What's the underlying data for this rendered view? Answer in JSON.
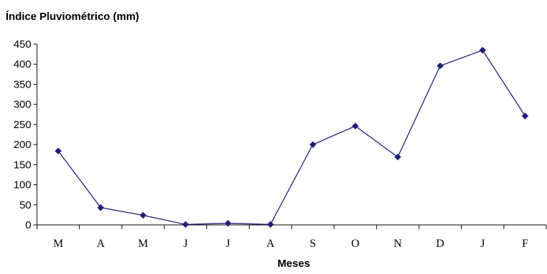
{
  "chart_data": {
    "type": "line",
    "title": "Índice Pluviométrico (mm)",
    "xlabel": "Meses",
    "ylabel": "",
    "ylim": [
      0,
      450
    ],
    "ytick_step": 50,
    "categories": [
      "M",
      "A",
      "M",
      "J",
      "J",
      "A",
      "S",
      "O",
      "N",
      "D",
      "J",
      "F"
    ],
    "series": [
      {
        "values": [
          184,
          43,
          24,
          1,
          4,
          1,
          200,
          246,
          169,
          396,
          435,
          271
        ],
        "color": "#1f1f7a",
        "marker": "diamond"
      }
    ],
    "grid": false,
    "legend": "none"
  }
}
